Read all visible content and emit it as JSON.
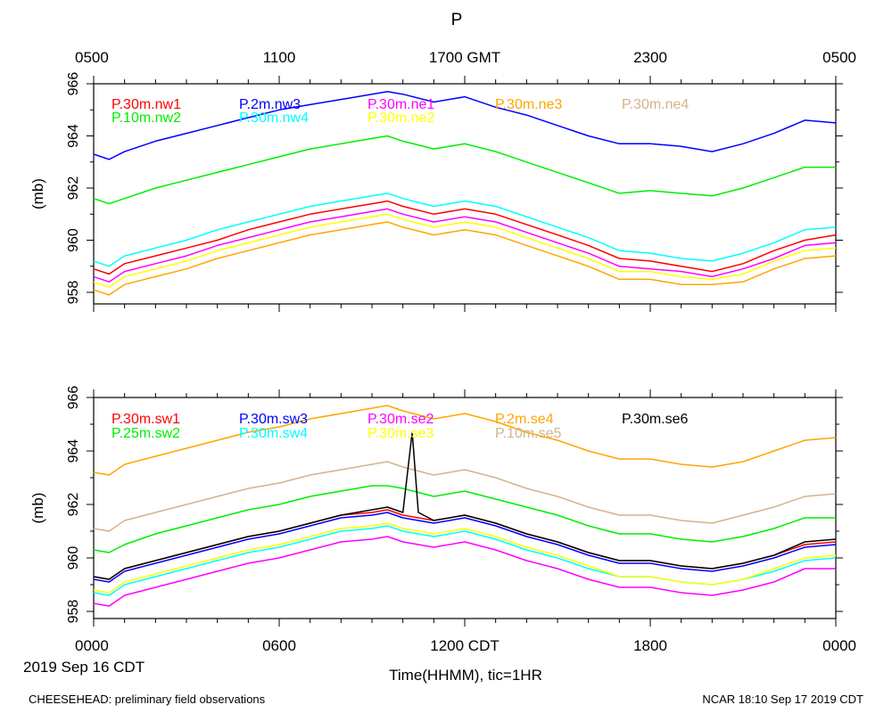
{
  "chart_data": [
    {
      "type": "line",
      "title": "P",
      "ylabel": "(mb)",
      "ylim": [
        957.5,
        966
      ],
      "yticks": [
        958,
        960,
        962,
        964,
        966
      ],
      "xlim": [
        0,
        24
      ],
      "top_axis_ticks": [
        {
          "x": 0,
          "label": "0500"
        },
        {
          "x": 6,
          "label": "1100"
        },
        {
          "x": 12,
          "label": "1700 GMT"
        },
        {
          "x": 18,
          "label": "2300"
        },
        {
          "x": 24,
          "label": "0500"
        }
      ],
      "series": [
        {
          "name": "P.30m.nw1",
          "color": "#ff0000",
          "legend_row": 0,
          "legend_col": 0,
          "x": [
            0,
            0.5,
            1,
            2,
            3,
            4,
            5,
            6,
            7,
            8,
            9,
            9.5,
            10,
            11,
            12,
            13,
            14,
            15,
            16,
            17,
            18,
            19,
            20,
            21,
            22,
            23,
            24
          ],
          "values": [
            958.9,
            958.7,
            959.1,
            959.4,
            959.7,
            960.0,
            960.4,
            960.7,
            961.0,
            961.2,
            961.4,
            961.5,
            961.3,
            961.0,
            961.2,
            961.0,
            960.6,
            960.2,
            959.8,
            959.3,
            959.2,
            959.0,
            958.8,
            959.1,
            959.6,
            960.0,
            960.2
          ]
        },
        {
          "name": "P.10m.nw2",
          "color": "#00ee00",
          "legend_row": 1,
          "legend_col": 0,
          "x": [
            0,
            0.5,
            1,
            2,
            3,
            4,
            5,
            6,
            7,
            8,
            9,
            9.5,
            10,
            11,
            12,
            13,
            14,
            15,
            16,
            17,
            18,
            19,
            20,
            21,
            22,
            23,
            24
          ],
          "values": [
            961.6,
            961.4,
            961.6,
            962.0,
            962.3,
            962.6,
            962.9,
            963.2,
            963.5,
            963.7,
            963.9,
            964.0,
            963.8,
            963.5,
            963.7,
            963.4,
            963.0,
            962.6,
            962.2,
            961.8,
            961.9,
            961.8,
            961.7,
            962.0,
            962.4,
            962.8,
            962.8
          ]
        },
        {
          "name": "P.2m.nw3",
          "color": "#0000ff",
          "legend_row": 0,
          "legend_col": 1,
          "x": [
            0,
            0.5,
            1,
            2,
            3,
            4,
            5,
            6,
            7,
            8,
            9,
            9.5,
            10,
            11,
            12,
            13,
            14,
            15,
            16,
            17,
            18,
            19,
            20,
            21,
            22,
            23,
            24
          ],
          "values": [
            963.3,
            963.1,
            963.4,
            963.8,
            964.1,
            964.4,
            964.7,
            965.0,
            965.2,
            965.4,
            965.6,
            965.7,
            965.6,
            965.3,
            965.5,
            965.1,
            964.8,
            964.4,
            964.0,
            963.7,
            963.7,
            963.6,
            963.4,
            963.7,
            964.1,
            964.6,
            964.5
          ]
        },
        {
          "name": "P.30m.nw4",
          "color": "#00ffff",
          "legend_row": 1,
          "legend_col": 1,
          "x": [
            0,
            0.5,
            1,
            2,
            3,
            4,
            5,
            6,
            7,
            8,
            9,
            9.5,
            10,
            11,
            12,
            13,
            14,
            15,
            16,
            17,
            18,
            19,
            20,
            21,
            22,
            23,
            24
          ],
          "values": [
            959.2,
            959.0,
            959.4,
            959.7,
            960.0,
            960.4,
            960.7,
            961.0,
            961.3,
            961.5,
            961.7,
            961.8,
            961.6,
            961.3,
            961.5,
            961.3,
            960.9,
            960.5,
            960.1,
            959.6,
            959.5,
            959.3,
            959.2,
            959.5,
            959.9,
            960.4,
            960.5
          ]
        },
        {
          "name": "P.30m.ne1",
          "color": "#ff00ff",
          "legend_row": 0,
          "legend_col": 2,
          "x": [
            0,
            0.5,
            1,
            2,
            3,
            4,
            5,
            6,
            7,
            8,
            9,
            9.5,
            10,
            11,
            12,
            13,
            14,
            15,
            16,
            17,
            18,
            19,
            20,
            21,
            22,
            23,
            24
          ],
          "values": [
            958.6,
            958.4,
            958.8,
            959.1,
            959.4,
            959.8,
            960.1,
            960.4,
            960.7,
            960.9,
            961.1,
            961.2,
            961.0,
            960.7,
            960.9,
            960.7,
            960.3,
            959.9,
            959.5,
            959.0,
            958.9,
            958.8,
            958.6,
            958.9,
            959.3,
            959.8,
            959.9
          ]
        },
        {
          "name": "P.30m.ne2",
          "color": "#ffff00",
          "legend_row": 1,
          "legend_col": 2,
          "x": [
            0,
            0.5,
            1,
            2,
            3,
            4,
            5,
            6,
            7,
            8,
            9,
            9.5,
            10,
            11,
            12,
            13,
            14,
            15,
            16,
            17,
            18,
            19,
            20,
            21,
            22,
            23,
            24
          ],
          "values": [
            958.4,
            958.2,
            958.6,
            958.9,
            959.2,
            959.6,
            959.9,
            960.2,
            960.5,
            960.7,
            960.9,
            961.0,
            960.8,
            960.5,
            960.7,
            960.5,
            960.1,
            959.7,
            959.3,
            958.8,
            958.8,
            958.6,
            958.5,
            958.7,
            959.2,
            959.6,
            959.7
          ]
        },
        {
          "name": "P.30m.ne3",
          "color": "#ffa500",
          "legend_row": 0,
          "legend_col": 3,
          "x": [
            0,
            0.5,
            1,
            2,
            3,
            4,
            5,
            6,
            7,
            8,
            9,
            9.5,
            10,
            11,
            12,
            13,
            14,
            15,
            16,
            17,
            18,
            19,
            20,
            21,
            22,
            23,
            24
          ],
          "values": [
            958.1,
            957.9,
            958.3,
            958.6,
            958.9,
            959.3,
            959.6,
            959.9,
            960.2,
            960.4,
            960.6,
            960.7,
            960.5,
            960.2,
            960.4,
            960.2,
            959.8,
            959.4,
            959.0,
            958.5,
            958.5,
            958.3,
            958.3,
            958.4,
            958.9,
            959.3,
            959.4
          ]
        },
        {
          "name": "P.30m.ne4",
          "color": "#d2b48c",
          "legend_row": 0,
          "legend_col": 4,
          "x": [],
          "values": []
        }
      ]
    },
    {
      "type": "line",
      "title": "",
      "ylabel": "(mb)",
      "ylim": [
        957.5,
        966
      ],
      "yticks": [
        958,
        960,
        962,
        964,
        966
      ],
      "xlim": [
        0,
        24
      ],
      "xlabel": "Time(HHMM), tic=1HR",
      "date_label": "2019 Sep 16 CDT",
      "bottom_axis_ticks": [
        {
          "x": 0,
          "label": "0000"
        },
        {
          "x": 6,
          "label": "0600"
        },
        {
          "x": 12,
          "label": "1200 CDT"
        },
        {
          "x": 18,
          "label": "1800"
        },
        {
          "x": 24,
          "label": "0000"
        }
      ],
      "series": [
        {
          "name": "P.30m.sw1",
          "color": "#ff0000",
          "legend_row": 0,
          "legend_col": 0,
          "x": [
            0,
            0.5,
            1,
            2,
            3,
            4,
            5,
            6,
            7,
            8,
            9,
            9.5,
            10,
            11,
            12,
            13,
            14,
            15,
            16,
            17,
            18,
            19,
            20,
            21,
            22,
            23,
            24
          ],
          "values": [
            959.3,
            959.2,
            959.6,
            959.9,
            960.2,
            960.5,
            960.8,
            961.0,
            961.3,
            961.6,
            961.7,
            961.8,
            961.6,
            961.4,
            961.6,
            961.3,
            960.9,
            960.6,
            960.2,
            959.9,
            959.9,
            959.7,
            959.6,
            959.8,
            960.1,
            960.5,
            960.6
          ]
        },
        {
          "name": "P.25m.sw2",
          "color": "#00ee00",
          "legend_row": 1,
          "legend_col": 0,
          "x": [
            0,
            0.5,
            1,
            2,
            3,
            4,
            5,
            6,
            7,
            8,
            9,
            9.5,
            10,
            11,
            12,
            13,
            14,
            15,
            16,
            17,
            18,
            19,
            20,
            21,
            22,
            23,
            24
          ],
          "values": [
            960.3,
            960.2,
            960.5,
            960.9,
            961.2,
            961.5,
            961.8,
            962.0,
            962.3,
            962.5,
            962.7,
            962.7,
            962.6,
            962.3,
            962.5,
            962.2,
            961.9,
            961.6,
            961.2,
            960.9,
            960.9,
            960.7,
            960.6,
            960.8,
            961.1,
            961.5,
            961.5
          ]
        },
        {
          "name": "P.30m.sw3",
          "color": "#0000ff",
          "legend_row": 0,
          "legend_col": 1,
          "x": [
            0,
            0.5,
            1,
            2,
            3,
            4,
            5,
            6,
            7,
            8,
            9,
            9.5,
            10,
            11,
            12,
            13,
            14,
            15,
            16,
            17,
            18,
            19,
            20,
            21,
            22,
            23,
            24
          ],
          "values": [
            959.2,
            959.1,
            959.5,
            959.8,
            960.1,
            960.4,
            960.7,
            960.9,
            961.2,
            961.5,
            961.6,
            961.7,
            961.5,
            961.3,
            961.5,
            961.2,
            960.8,
            960.5,
            960.1,
            959.8,
            959.8,
            959.6,
            959.5,
            959.7,
            960.0,
            960.4,
            960.5
          ]
        },
        {
          "name": "P.30m.sw4",
          "color": "#00ffff",
          "legend_row": 1,
          "legend_col": 1,
          "x": [
            0,
            0.5,
            1,
            2,
            3,
            4,
            5,
            6,
            7,
            8,
            9,
            9.5,
            10,
            11,
            12,
            13,
            14,
            15,
            16,
            17,
            18,
            19,
            20,
            21,
            22,
            23,
            24
          ],
          "values": [
            958.7,
            958.6,
            959.0,
            959.3,
            959.6,
            959.9,
            960.2,
            960.4,
            960.7,
            961.0,
            961.1,
            961.2,
            961.0,
            960.8,
            961.0,
            960.7,
            960.3,
            960.0,
            959.6,
            959.3,
            959.3,
            959.1,
            959.0,
            959.2,
            959.5,
            959.9,
            960.0
          ]
        },
        {
          "name": "P.30m.se2",
          "color": "#ff00ff",
          "legend_row": 0,
          "legend_col": 2,
          "x": [
            0,
            0.5,
            1,
            2,
            3,
            4,
            5,
            6,
            7,
            8,
            9,
            9.5,
            10,
            11,
            12,
            13,
            14,
            15,
            16,
            17,
            18,
            19,
            20,
            21,
            22,
            23,
            24
          ],
          "values": [
            958.3,
            958.2,
            958.6,
            958.9,
            959.2,
            959.5,
            959.8,
            960.0,
            960.3,
            960.6,
            960.7,
            960.8,
            960.6,
            960.4,
            960.6,
            960.3,
            959.9,
            959.6,
            959.2,
            958.9,
            958.9,
            958.7,
            958.6,
            958.8,
            959.1,
            959.6,
            959.6
          ]
        },
        {
          "name": "P.30m.se3",
          "color": "#ffff00",
          "legend_row": 1,
          "legend_col": 2,
          "x": [
            0,
            0.5,
            1,
            2,
            3,
            4,
            5,
            6,
            7,
            8,
            9,
            9.5,
            10,
            11,
            12,
            13,
            14,
            15,
            16,
            17,
            18,
            19,
            20,
            21,
            22,
            23,
            24
          ],
          "values": [
            958.8,
            958.7,
            959.1,
            959.4,
            959.7,
            960.0,
            960.3,
            960.5,
            960.8,
            961.1,
            961.2,
            961.3,
            961.1,
            960.9,
            961.1,
            960.8,
            960.4,
            960.1,
            959.7,
            959.3,
            959.3,
            959.1,
            959.0,
            959.2,
            959.6,
            960.0,
            960.1
          ]
        },
        {
          "name": "P.2m.se4",
          "color": "#ffa500",
          "legend_row": 0,
          "legend_col": 3,
          "x": [
            0,
            0.5,
            1,
            2,
            3,
            4,
            5,
            6,
            7,
            8,
            9,
            9.5,
            10,
            11,
            12,
            13,
            14,
            15,
            16,
            17,
            18,
            19,
            20,
            21,
            22,
            23,
            24
          ],
          "values": [
            963.2,
            963.1,
            963.5,
            963.8,
            964.1,
            964.4,
            964.7,
            964.9,
            965.2,
            965.4,
            965.6,
            965.7,
            965.5,
            965.2,
            965.4,
            965.1,
            964.7,
            964.4,
            964.0,
            963.7,
            963.7,
            963.5,
            963.4,
            963.6,
            964.0,
            964.4,
            964.5
          ]
        },
        {
          "name": "P.10m.se5",
          "color": "#d2b48c",
          "legend_row": 1,
          "legend_col": 3,
          "x": [
            0,
            0.5,
            1,
            2,
            3,
            4,
            5,
            6,
            7,
            8,
            9,
            9.5,
            10,
            11,
            12,
            13,
            14,
            15,
            16,
            17,
            18,
            19,
            20,
            21,
            22,
            23,
            24
          ],
          "values": [
            961.1,
            961.0,
            961.4,
            961.7,
            962.0,
            962.3,
            962.6,
            962.8,
            963.1,
            963.3,
            963.5,
            963.6,
            963.4,
            963.1,
            963.3,
            963.0,
            962.6,
            962.3,
            961.9,
            961.6,
            961.6,
            961.4,
            961.3,
            961.6,
            961.9,
            962.3,
            962.4
          ]
        },
        {
          "name": "P.30m.se6",
          "color": "#000000",
          "legend_row": 0,
          "legend_col": 4,
          "x": [
            0,
            0.5,
            1,
            2,
            3,
            4,
            5,
            6,
            7,
            8,
            9,
            9.5,
            10,
            10.3,
            10.5,
            11,
            12,
            13,
            14,
            15,
            16,
            17,
            18,
            19,
            20,
            21,
            22,
            23,
            24
          ],
          "values": [
            959.3,
            959.2,
            959.6,
            959.9,
            960.2,
            960.5,
            960.8,
            961.0,
            961.3,
            961.6,
            961.8,
            961.9,
            961.7,
            964.7,
            961.7,
            961.4,
            961.6,
            961.3,
            960.9,
            960.6,
            960.2,
            959.9,
            959.9,
            959.7,
            959.6,
            959.8,
            960.1,
            960.6,
            960.7
          ]
        }
      ]
    }
  ],
  "footer": {
    "left": "CHEESEHEAD: preliminary field observations",
    "right": "NCAR 18:10 Sep 17 2019 CDT"
  }
}
